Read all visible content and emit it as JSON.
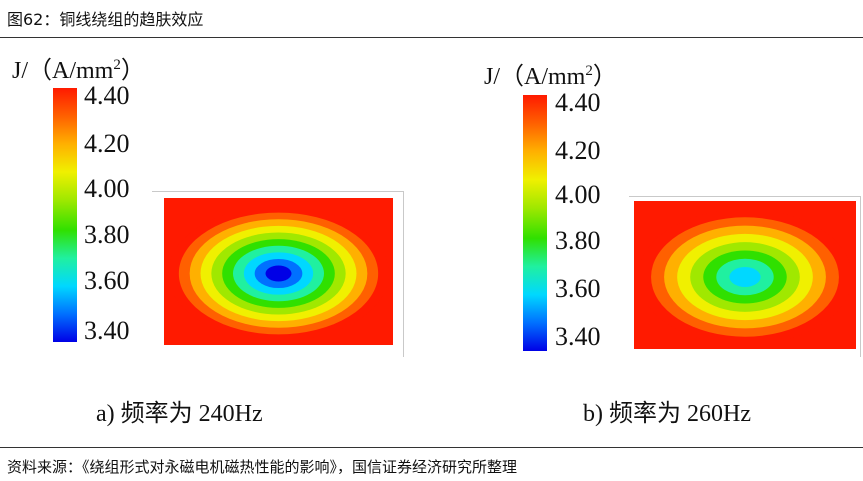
{
  "figure": {
    "title": "图62：铜线绕组的趋肤效应",
    "source": "资料来源：《绕组形式对永磁电机磁热性能的影响》，国信证券经济研究所整理"
  },
  "colors": {
    "scale": [
      "#0000e6",
      "#0070ff",
      "#00d8ff",
      "#20f0a0",
      "#30e000",
      "#a0e800",
      "#f0f000",
      "#ffb000",
      "#ff6000",
      "#ff1a00"
    ]
  },
  "panels": [
    {
      "unit_label": "J/（A/mm",
      "unit_exponent": "2",
      "unit_suffix": "）",
      "ticks": [
        "4.40",
        "4.20",
        "4.00",
        "3.80",
        "3.60",
        "3.40"
      ],
      "caption": "a) 频率为 240Hz",
      "center_value": 3.4
    },
    {
      "unit_label": "J/（A/mm",
      "unit_exponent": "2",
      "unit_suffix": "）",
      "ticks": [
        "4.40",
        "4.20",
        "4.00",
        "3.80",
        "3.60",
        "3.40"
      ],
      "caption": "b) 频率为 260Hz",
      "center_value": 3.6
    }
  ]
}
